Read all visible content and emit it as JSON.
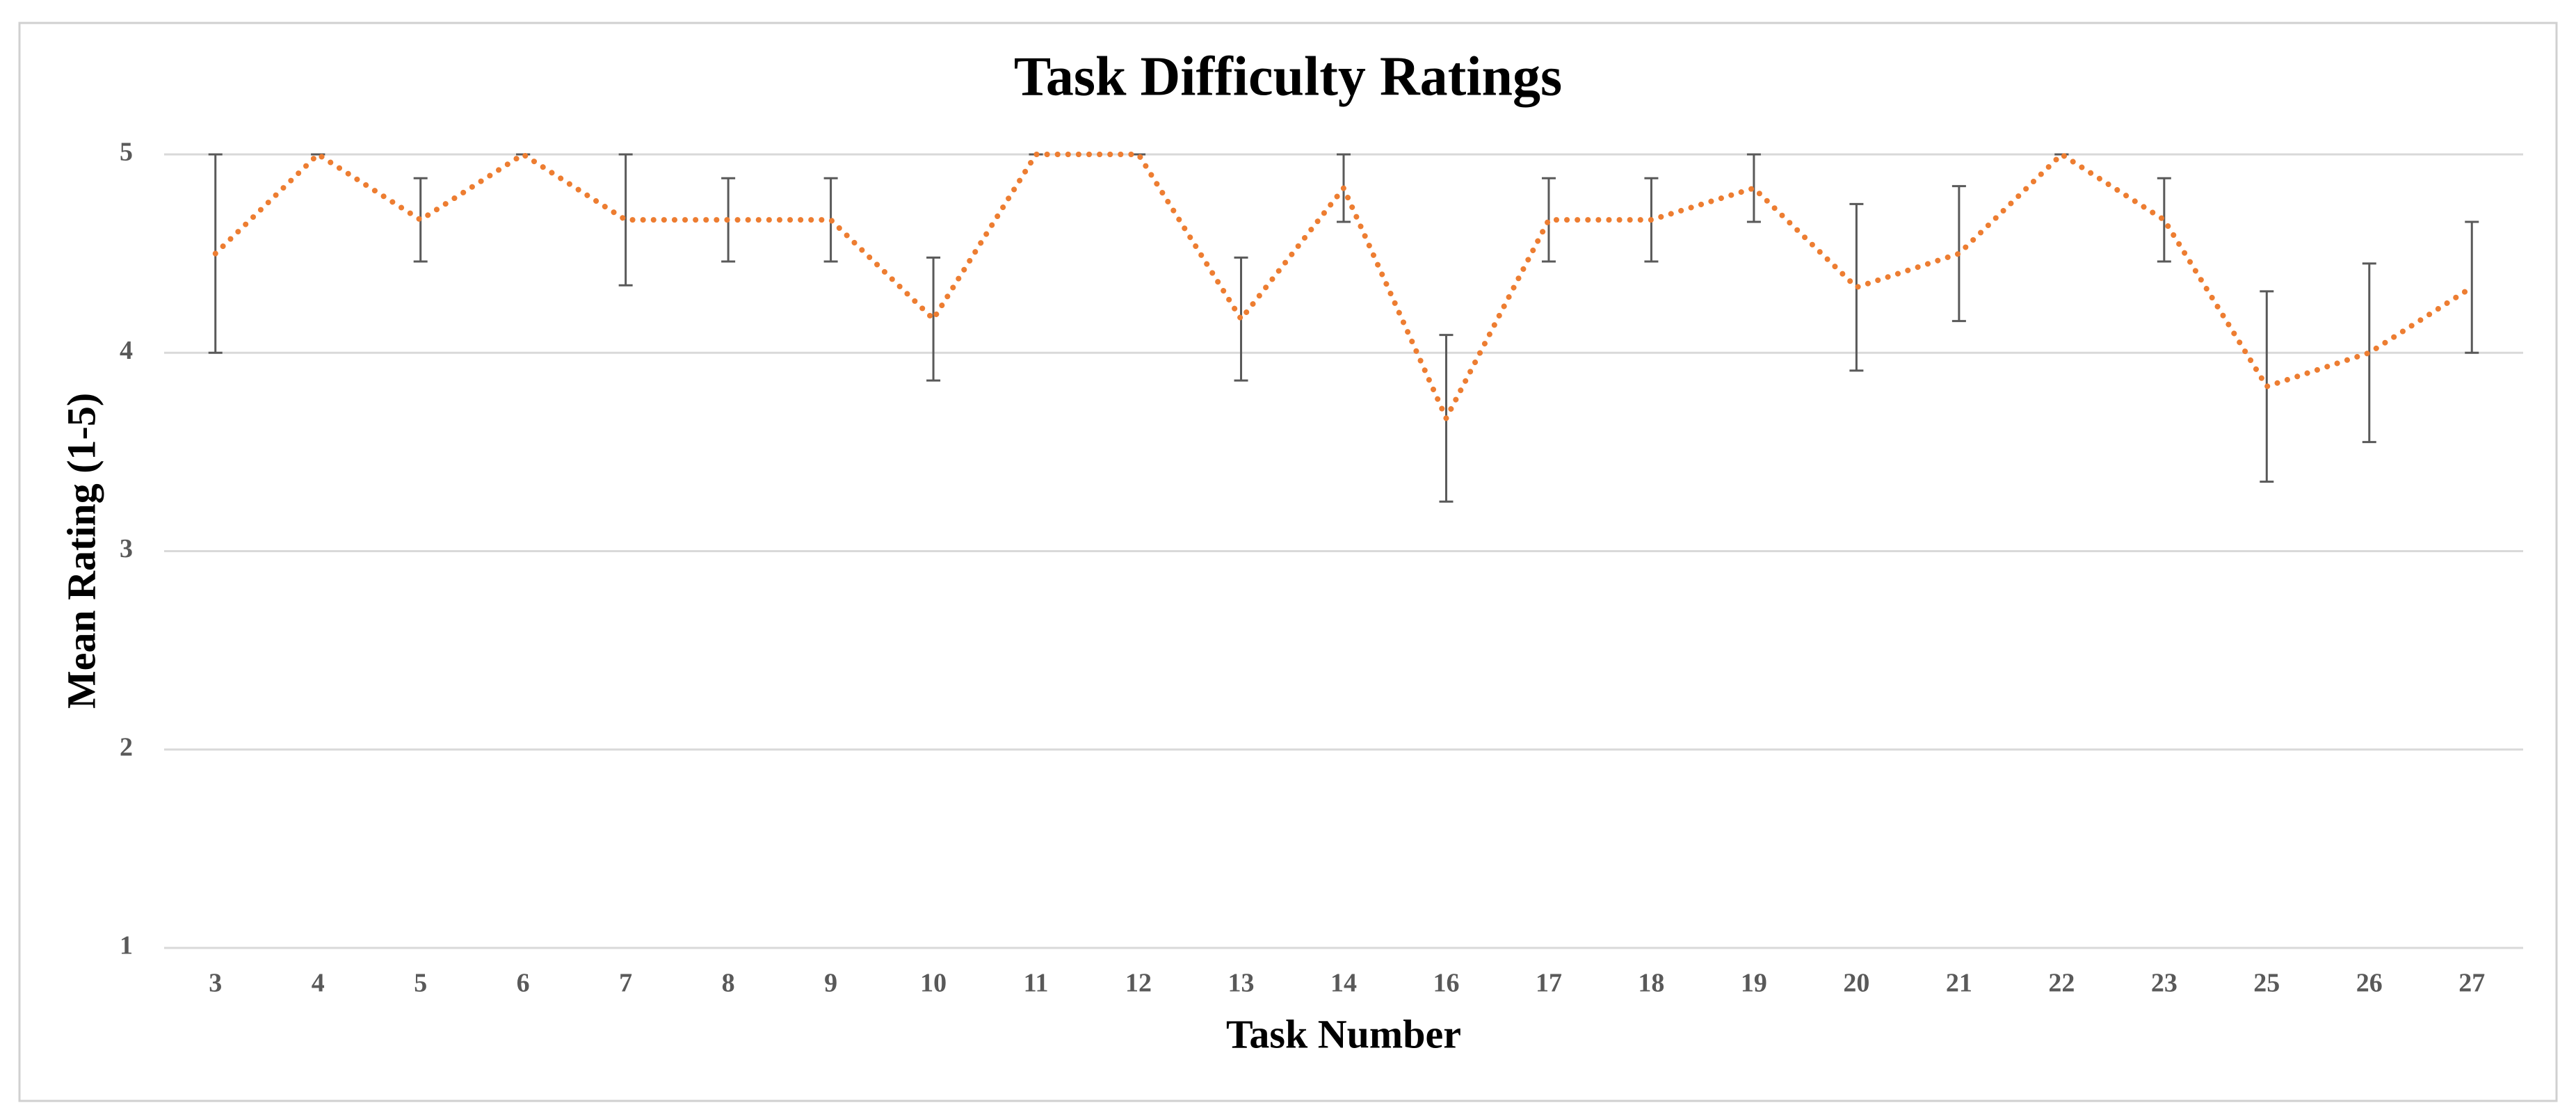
{
  "chart_data": {
    "type": "line",
    "title": "Task Difficulty Ratings",
    "x_label": "Task Number",
    "y_label": "Mean Rating (1-5)",
    "categories": [
      "3",
      "4",
      "5",
      "6",
      "7",
      "8",
      "9",
      "10",
      "11",
      "12",
      "13",
      "14",
      "16",
      "17",
      "18",
      "19",
      "20",
      "21",
      "22",
      "23",
      "25",
      "26",
      "27"
    ],
    "values": [
      4.5,
      5,
      4.67,
      5,
      4.67,
      4.67,
      4.67,
      4.17,
      5,
      5,
      4.17,
      4.83,
      3.67,
      4.67,
      4.67,
      4.83,
      4.33,
      4.5,
      5,
      4.67,
      3.83,
      4,
      4.33
    ],
    "errors": [
      0.5,
      0,
      0.21,
      0,
      0.33,
      0.21,
      0.21,
      0.31,
      0,
      0,
      0.31,
      0.17,
      0.42,
      0.21,
      0.21,
      0.17,
      0.42,
      0.34,
      0,
      0.21,
      0.48,
      0.45,
      0.33
    ],
    "color": "#ed7d31",
    "error_color": "#595959",
    "ylim": [
      1,
      5
    ],
    "yticks": [
      1,
      2,
      3,
      4,
      5
    ],
    "grid": true
  }
}
